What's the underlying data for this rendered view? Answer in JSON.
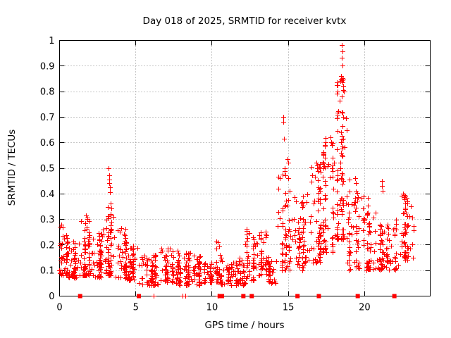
{
  "figure": {
    "title": "Day 018 of 2025, SRMTID for receiver kvtx",
    "xlabel": "GPS time / hours",
    "ylabel": "SRMTID / TECUs",
    "background": "#ffffff",
    "marker_color": "#ff0000",
    "grid_color": "#8c8c8c",
    "axis_color": "#000000"
  },
  "chart_data": {
    "type": "scatter",
    "title": "Day 018 of 2025, SRMTID for receiver kvtx",
    "xlabel": "GPS time / hours",
    "ylabel": "SRMTID / TECUs",
    "series_name": "SRMTID",
    "marker": "plus",
    "marker_color": "#ff0000",
    "grid": true,
    "xlim": [
      0,
      24.3
    ],
    "ylim": [
      0,
      1
    ],
    "x_tick_values": [
      0,
      5,
      10,
      15,
      20
    ],
    "x_tick_labels": [
      "0",
      "5",
      "10",
      "15",
      "20"
    ],
    "y_tick_values": [
      0,
      0.1,
      0.2,
      0.3,
      0.4,
      0.5,
      0.6,
      0.7,
      0.8,
      0.9,
      1
    ],
    "y_tick_labels": [
      "0",
      "0.1",
      "0.2",
      "0.3",
      "0.4",
      "0.5",
      "0.6",
      "0.7",
      "0.8",
      "0.9",
      "1"
    ],
    "density_segments": [
      {
        "x0": 0.0,
        "x1": 0.5,
        "n": 45,
        "ymin": 0.08,
        "ymax": 0.28,
        "pow": 1.6
      },
      {
        "x0": 0.5,
        "x1": 1.3,
        "n": 55,
        "ymin": 0.07,
        "ymax": 0.22,
        "pow": 1.5
      },
      {
        "x0": 1.3,
        "x1": 2.2,
        "n": 65,
        "ymin": 0.08,
        "ymax": 0.33,
        "pow": 1.8
      },
      {
        "x0": 2.2,
        "x1": 3.0,
        "n": 55,
        "ymin": 0.07,
        "ymax": 0.26,
        "pow": 1.6
      },
      {
        "x0": 3.0,
        "x1": 3.6,
        "n": 55,
        "ymin": 0.08,
        "ymax": 0.35,
        "pow": 1.8
      },
      {
        "x0": 3.6,
        "x1": 4.4,
        "n": 50,
        "ymin": 0.07,
        "ymax": 0.27,
        "pow": 1.7
      },
      {
        "x0": 4.4,
        "x1": 5.2,
        "n": 45,
        "ymin": 0.06,
        "ymax": 0.2,
        "pow": 1.6
      },
      {
        "x0": 5.2,
        "x1": 6.5,
        "n": 70,
        "ymin": 0.04,
        "ymax": 0.16,
        "pow": 1.5
      },
      {
        "x0": 6.5,
        "x1": 7.8,
        "n": 70,
        "ymin": 0.05,
        "ymax": 0.19,
        "pow": 1.6
      },
      {
        "x0": 7.8,
        "x1": 9.5,
        "n": 90,
        "ymin": 0.04,
        "ymax": 0.17,
        "pow": 1.6
      },
      {
        "x0": 9.5,
        "x1": 10.1,
        "n": 35,
        "ymin": 0.05,
        "ymax": 0.13,
        "pow": 1.4
      },
      {
        "x0": 10.1,
        "x1": 10.6,
        "n": 30,
        "ymin": 0.05,
        "ymax": 0.22,
        "pow": 1.7
      },
      {
        "x0": 10.6,
        "x1": 12.2,
        "n": 80,
        "ymin": 0.04,
        "ymax": 0.15,
        "pow": 1.5
      },
      {
        "x0": 12.2,
        "x1": 13.0,
        "n": 45,
        "ymin": 0.06,
        "ymax": 0.28,
        "pow": 1.7
      },
      {
        "x0": 13.0,
        "x1": 13.7,
        "n": 40,
        "ymin": 0.08,
        "ymax": 0.25,
        "pow": 1.6
      },
      {
        "x0": 13.7,
        "x1": 14.2,
        "n": 30,
        "ymin": 0.05,
        "ymax": 0.16,
        "pow": 1.5
      },
      {
        "x0": 14.2,
        "x1": 15.3,
        "n": 65,
        "ymin": 0.1,
        "ymax": 0.5,
        "pow": 2.0
      },
      {
        "x0": 15.3,
        "x1": 16.3,
        "n": 60,
        "ymin": 0.1,
        "ymax": 0.4,
        "pow": 1.8
      },
      {
        "x0": 16.3,
        "x1": 17.3,
        "n": 65,
        "ymin": 0.13,
        "ymax": 0.52,
        "pow": 1.7
      },
      {
        "x0": 17.3,
        "x1": 18.2,
        "n": 65,
        "ymin": 0.17,
        "ymax": 0.62,
        "pow": 1.7
      },
      {
        "x0": 18.2,
        "x1": 18.9,
        "n": 75,
        "ymin": 0.22,
        "ymax": 0.85,
        "pow": 1.8
      },
      {
        "x0": 18.9,
        "x1": 19.8,
        "n": 55,
        "ymin": 0.1,
        "ymax": 0.46,
        "pow": 1.7
      },
      {
        "x0": 19.8,
        "x1": 21.0,
        "n": 65,
        "ymin": 0.1,
        "ymax": 0.4,
        "pow": 1.9
      },
      {
        "x0": 21.0,
        "x1": 22.3,
        "n": 70,
        "ymin": 0.1,
        "ymax": 0.3,
        "pow": 1.6
      },
      {
        "x0": 22.3,
        "x1": 23.25,
        "n": 60,
        "ymin": 0.14,
        "ymax": 0.4,
        "pow": 1.6
      }
    ],
    "outlier_points": [
      [
        3.25,
        0.5
      ],
      [
        3.27,
        0.47
      ],
      [
        3.3,
        0.455
      ],
      [
        3.3,
        0.44
      ],
      [
        3.32,
        0.425
      ],
      [
        3.34,
        0.405
      ],
      [
        3.37,
        0.36
      ],
      [
        14.67,
        0.7
      ],
      [
        14.7,
        0.68
      ],
      [
        14.72,
        0.615
      ],
      [
        14.95,
        0.535
      ],
      [
        15.0,
        0.52
      ],
      [
        14.8,
        0.5
      ],
      [
        14.85,
        0.47
      ],
      [
        16.85,
        0.52
      ],
      [
        16.9,
        0.5
      ],
      [
        17.8,
        0.62
      ],
      [
        17.85,
        0.6
      ],
      [
        18.52,
        0.98
      ],
      [
        18.55,
        0.955
      ],
      [
        18.53,
        0.93
      ],
      [
        18.58,
        0.9
      ],
      [
        18.5,
        0.86
      ],
      [
        18.55,
        0.85
      ],
      [
        18.6,
        0.845
      ],
      [
        18.57,
        0.835
      ],
      [
        18.62,
        0.82
      ],
      [
        18.6,
        0.805
      ],
      [
        18.65,
        0.8
      ],
      [
        18.52,
        0.72
      ],
      [
        18.57,
        0.715
      ],
      [
        18.6,
        0.7
      ],
      [
        18.55,
        0.665
      ],
      [
        18.48,
        0.64
      ],
      [
        18.63,
        0.615
      ],
      [
        18.58,
        0.585
      ],
      [
        18.5,
        0.56
      ],
      [
        18.55,
        0.545
      ],
      [
        18.42,
        0.52
      ],
      [
        18.45,
        0.5
      ],
      [
        19.4,
        0.46
      ],
      [
        19.45,
        0.44
      ],
      [
        21.15,
        0.45
      ],
      [
        21.18,
        0.43
      ],
      [
        21.2,
        0.41
      ],
      [
        22.55,
        0.4
      ],
      [
        22.6,
        0.385
      ]
    ],
    "zero_square_markers_x": [
      1.35,
      5.2,
      10.5,
      10.65,
      12.05,
      12.6,
      15.6,
      17.0,
      19.55,
      21.95
    ],
    "zero_plus_markers_x": [
      6.2,
      8.1,
      8.25,
      10.4
    ]
  }
}
